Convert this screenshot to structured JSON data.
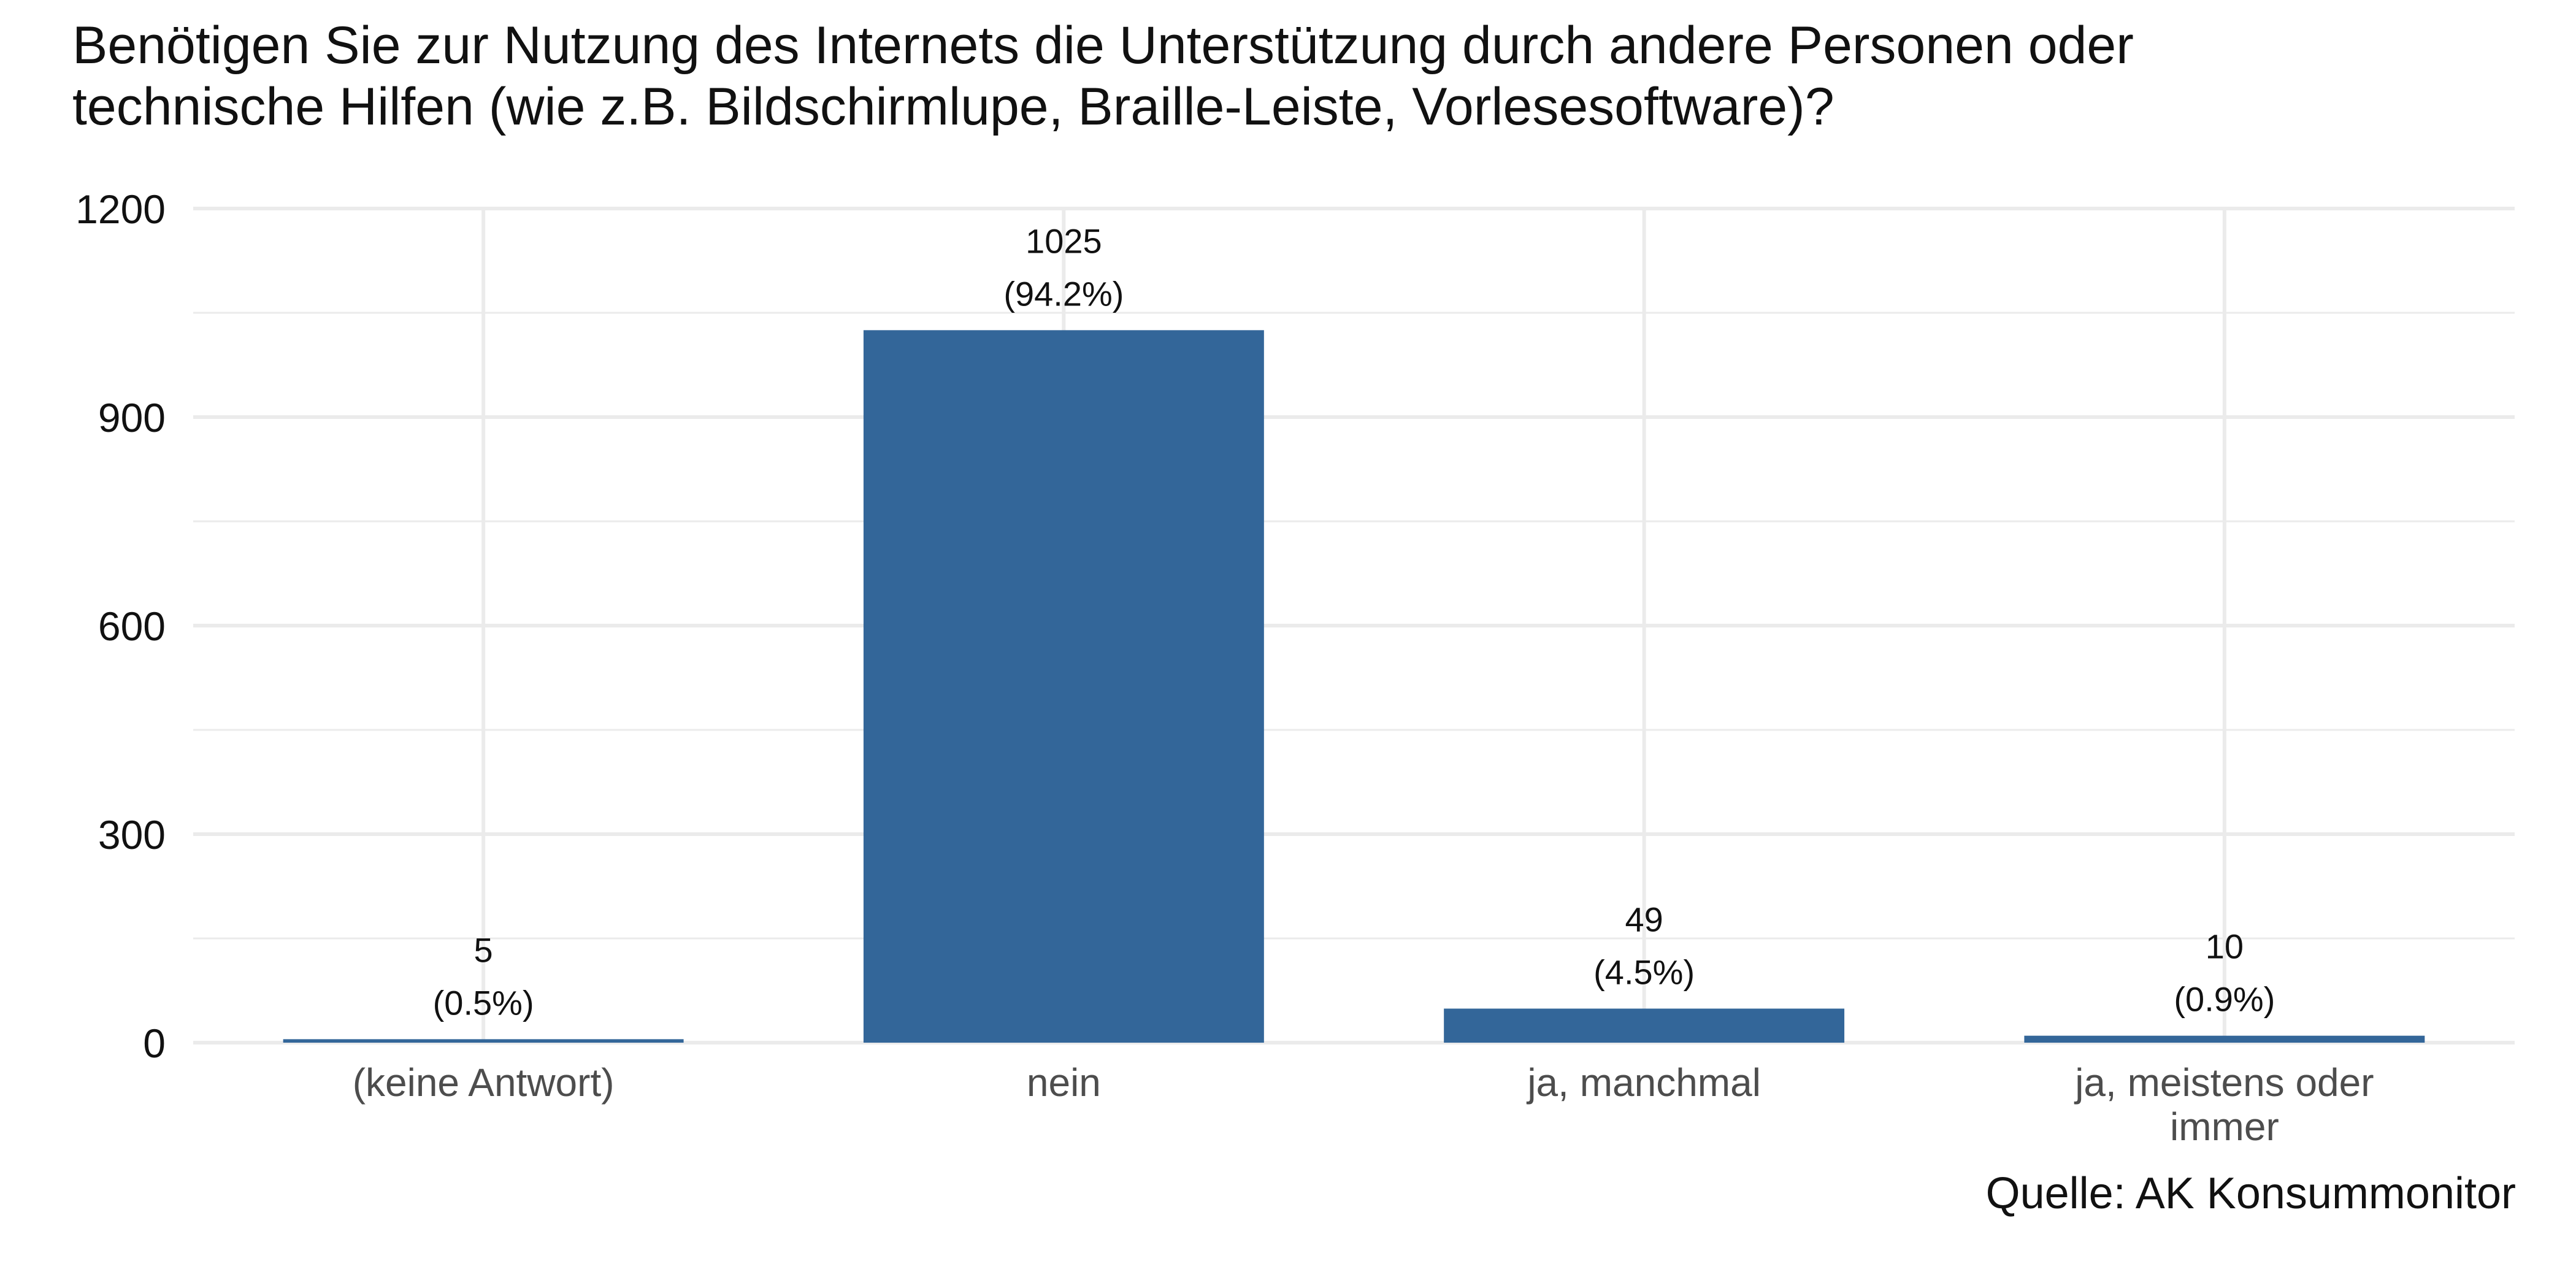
{
  "chart_data": {
    "type": "bar",
    "title": [
      "Benötigen Sie zur Nutzung des Internets die Unterstützung durch andere Personen oder",
      "technische Hilfen (wie z.B. Bildschirmlupe, Braille-Leiste, Vorlesesoftware)?"
    ],
    "xlabel": "",
    "ylabel": "",
    "categories": [
      [
        "(keine Antwort)"
      ],
      [
        "nein"
      ],
      [
        "ja, manchmal"
      ],
      [
        "ja, meistens oder",
        "immer"
      ]
    ],
    "values": [
      5,
      1025,
      49,
      10
    ],
    "data_labels": [
      [
        "5",
        "(0.5%)"
      ],
      [
        "1025",
        "(94.2%)"
      ],
      [
        "49",
        "(4.5%)"
      ],
      [
        "10",
        "(0.9%)"
      ]
    ],
    "y_ticks": [
      0,
      300,
      600,
      900,
      1200
    ],
    "ylim": [
      0,
      1200
    ],
    "grid": true,
    "legend": "none",
    "caption": "Quelle: AK Konsummonitor",
    "colors": {
      "bar": "#336699",
      "grid": "#ebebeb",
      "axis_text": "#4d4d4d",
      "text": "#111111"
    }
  }
}
